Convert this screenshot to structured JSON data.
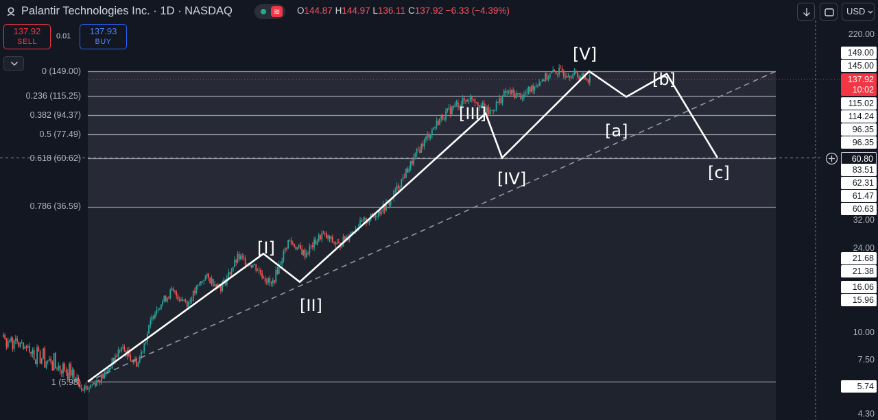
{
  "header": {
    "title": "Palantir Technologies Inc. · 1D · NASDAQ",
    "ohlc": [
      {
        "k": "O",
        "v": "144.87"
      },
      {
        "k": "H",
        "v": "144.97"
      },
      {
        "k": "L",
        "v": "136.11"
      },
      {
        "k": "C",
        "v": "137.92"
      }
    ],
    "change": "−6.33 (−4.39%)",
    "currency": "USD",
    "status_icon": "≋"
  },
  "trade": {
    "sell_price": "137.92",
    "sell_label": "SELL",
    "spread": "0.01",
    "buy_price": "137.93",
    "buy_label": "BUY"
  },
  "price_axis": {
    "scale": "log",
    "labels": [
      "220.00",
      "32.00",
      "24.00",
      "10.00",
      "7.50",
      "4.30"
    ],
    "tags": [
      "149.00",
      "145.00",
      "115.02",
      "114.24",
      "96.35",
      "96.35",
      "60.80",
      "83.51",
      "62.31",
      "61.47",
      "60.63",
      "21.68",
      "21.38",
      "16.06",
      "15.96",
      "5.74"
    ],
    "last_price": "137.92",
    "countdown": "10:02"
  },
  "chart_data": {
    "type": "line",
    "title": "Palantir Technologies Inc. · 1D · NASDAQ",
    "y_scale": "log",
    "fib_levels": [
      {
        "ratio": "0",
        "price": 149.0,
        "label": "0 (149.00)"
      },
      {
        "ratio": "0.236",
        "price": 115.25,
        "label": "0.236 (115.25)"
      },
      {
        "ratio": "0.382",
        "price": 94.37,
        "label": "0.382 (94.37)"
      },
      {
        "ratio": "0.5",
        "price": 77.49,
        "label": "0.5 (77.49)"
      },
      {
        "ratio": "0.618",
        "price": 60.62,
        "label": "0.618 (60.62)"
      },
      {
        "ratio": "0.786",
        "price": 36.59,
        "label": "0.786 (36.59)"
      },
      {
        "ratio": "1",
        "price": 5.98,
        "label": "1 (5.98)"
      }
    ],
    "wave_labels": [
      {
        "label": "[I]",
        "price": 22.5
      },
      {
        "label": "[II]",
        "price": 16.0
      },
      {
        "label": "[III]",
        "price": 95.0
      },
      {
        "label": "[IV]",
        "price": 61.0
      },
      {
        "label": "[V]",
        "price": 149.0
      },
      {
        "label": "[a]",
        "price": 114.0
      },
      {
        "label": "[b]",
        "price": 145.0
      },
      {
        "label": "[c]",
        "price": 60.8
      }
    ],
    "price_path": [
      5.98,
      5.6,
      6.4,
      8.5,
      7.2,
      12.5,
      15.2,
      13.5,
      17.8,
      15.9,
      21.7,
      19.8,
      16.2,
      25.8,
      22.4,
      27.5,
      24.5,
      29.5,
      33.0,
      38.0,
      52.0,
      70.0,
      90.0,
      105.0,
      114.2,
      96.35,
      120.0,
      115.0,
      135.0,
      149.0,
      144.87,
      137.92
    ]
  }
}
